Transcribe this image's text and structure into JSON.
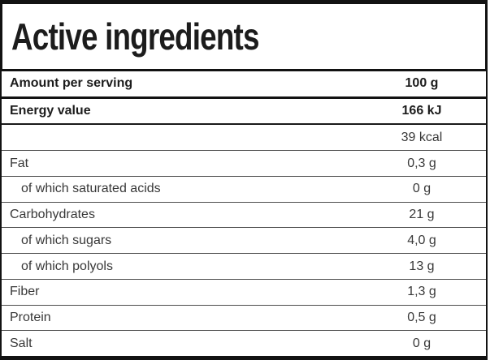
{
  "title": "Active ingredients",
  "colors": {
    "border": "#121212",
    "divider": "#4d4d4d",
    "text": "#383838",
    "text_bold": "#1c1c1c",
    "background": "#ffffff"
  },
  "table": {
    "rows": [
      {
        "label": "Amount per serving",
        "value": "100 g",
        "bold": true,
        "indent": false,
        "divider": "thick"
      },
      {
        "label": "Energy value",
        "value": "166 kJ",
        "bold": true,
        "indent": false,
        "divider": "medium"
      },
      {
        "label": "",
        "value": "39 kcal",
        "bold": false,
        "indent": false,
        "divider": "thin"
      },
      {
        "label": "Fat",
        "value": "0,3 g",
        "bold": false,
        "indent": false,
        "divider": "thin"
      },
      {
        "label": "of which saturated acids",
        "value": "0 g",
        "bold": false,
        "indent": true,
        "divider": "thin"
      },
      {
        "label": "Carbohydrates",
        "value": "21 g",
        "bold": false,
        "indent": false,
        "divider": "thin"
      },
      {
        "label": "of which sugars",
        "value": "4,0 g",
        "bold": false,
        "indent": true,
        "divider": "thin"
      },
      {
        "label": "of which polyols",
        "value": "13 g",
        "bold": false,
        "indent": true,
        "divider": "thin"
      },
      {
        "label": "Fiber",
        "value": "1,3 g",
        "bold": false,
        "indent": false,
        "divider": "thin"
      },
      {
        "label": "Protein",
        "value": "0,5 g",
        "bold": false,
        "indent": false,
        "divider": "thin"
      },
      {
        "label": "Salt",
        "value": "0 g",
        "bold": false,
        "indent": false,
        "divider": "none"
      }
    ]
  }
}
